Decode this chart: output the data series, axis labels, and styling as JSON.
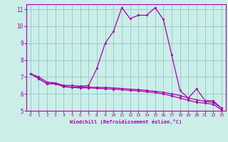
{
  "xlabel": "Windchill (Refroidissement éolien,°C)",
  "bg_color": "#cceee8",
  "line_color": "#aa00aa",
  "grid_color": "#99cccc",
  "xlim": [
    -0.5,
    23.5
  ],
  "ylim": [
    5,
    11.3
  ],
  "yticks": [
    5,
    6,
    7,
    8,
    9,
    10,
    11
  ],
  "xticks": [
    0,
    1,
    2,
    3,
    4,
    5,
    6,
    7,
    8,
    9,
    10,
    11,
    12,
    13,
    14,
    15,
    16,
    17,
    18,
    19,
    20,
    21,
    22,
    23
  ],
  "series1_x": [
    0,
    1,
    2,
    3,
    4,
    5,
    6,
    7,
    8,
    9,
    10,
    11,
    12,
    13,
    14,
    15,
    16,
    17,
    18,
    19,
    20,
    21,
    22,
    23
  ],
  "series1_y": [
    7.2,
    7.0,
    6.7,
    6.65,
    6.5,
    6.5,
    6.45,
    6.5,
    7.5,
    9.0,
    9.7,
    11.1,
    10.45,
    10.65,
    10.65,
    11.1,
    10.4,
    8.3,
    6.2,
    5.75,
    6.3,
    5.6,
    5.6,
    5.15
  ],
  "series2_x": [
    0,
    1,
    2,
    3,
    4,
    5,
    6,
    7,
    8,
    9,
    10,
    11,
    12,
    13,
    14,
    15,
    16,
    17,
    18,
    19,
    20,
    21,
    22,
    23
  ],
  "series2_y": [
    7.2,
    6.9,
    6.6,
    6.6,
    6.45,
    6.4,
    6.4,
    6.4,
    6.38,
    6.38,
    6.35,
    6.32,
    6.28,
    6.25,
    6.2,
    6.15,
    6.1,
    6.0,
    5.9,
    5.75,
    5.65,
    5.55,
    5.5,
    5.15
  ],
  "series3_x": [
    0,
    1,
    2,
    3,
    4,
    5,
    6,
    7,
    8,
    9,
    10,
    11,
    12,
    13,
    14,
    15,
    16,
    17,
    18,
    19,
    20,
    21,
    22,
    23
  ],
  "series3_y": [
    7.2,
    6.9,
    6.6,
    6.6,
    6.42,
    6.38,
    6.35,
    6.35,
    6.33,
    6.3,
    6.28,
    6.25,
    6.2,
    6.18,
    6.12,
    6.08,
    6.0,
    5.88,
    5.75,
    5.62,
    5.5,
    5.45,
    5.38,
    5.05
  ]
}
